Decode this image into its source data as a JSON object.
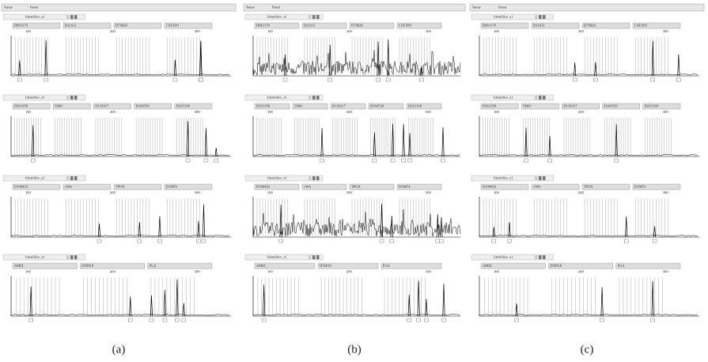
{
  "header": {
    "name": "Name",
    "panel": "Panel"
  },
  "scale": [
    "100",
    "200",
    "300"
  ],
  "panels": [
    {
      "caption": "(a)",
      "rows": [
        {
          "sample": "Identifiler_x1",
          "loci": [
            "D8S1179",
            "D21S11",
            "D7S820",
            "CSF1PO"
          ]
        },
        {
          "sample": "Identifiler_x1",
          "loci": [
            "D3S1358",
            "TH01",
            "D13S317",
            "D16S539",
            "D2S1338"
          ]
        },
        {
          "sample": "Identifiler_x1",
          "loci": [
            "D19S433",
            "vWA",
            "TPOX",
            "D18S51"
          ]
        },
        {
          "sample": "Identifiler_x1",
          "loci": [
            "AMEL",
            "D5S818",
            "FGA"
          ]
        }
      ]
    },
    {
      "caption": "(b)",
      "rows": [
        {
          "sample": "Identifiler_x1",
          "loci": [
            "D8S1179",
            "D21S11",
            "D7S820",
            "CSF1PO"
          ]
        },
        {
          "sample": "Identifiler_x1",
          "loci": [
            "D3S1358",
            "TH01",
            "D13S317",
            "D16S539",
            "D2S1338"
          ]
        },
        {
          "sample": "Identifiler_x1",
          "loci": [
            "D19S433",
            "vWA",
            "TPOX",
            "D18S51"
          ]
        },
        {
          "sample": "Identifiler_x1",
          "loci": [
            "AMEL",
            "D5S818",
            "FGA"
          ]
        }
      ]
    },
    {
      "caption": "(c)",
      "rows": [
        {
          "sample": "Identifiler_x1",
          "loci": [
            "D8S1179",
            "D21S11",
            "D7S820",
            "CSF1PO"
          ]
        },
        {
          "sample": "Identifiler_x1",
          "loci": [
            "D3S1358",
            "TH01",
            "D13S317",
            "D16S539",
            "D2S1338"
          ]
        },
        {
          "sample": "Identifiler_x1",
          "loci": [
            "D19S433",
            "vWA",
            "TPOX",
            "D18S51"
          ]
        },
        {
          "sample": "Identifiler_x1",
          "loci": [
            "AMEL",
            "D5S818",
            "FGA"
          ]
        }
      ]
    }
  ]
}
